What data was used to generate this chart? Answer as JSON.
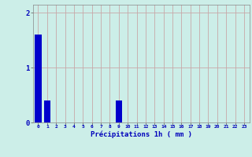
{
  "hours": [
    0,
    1,
    2,
    3,
    4,
    5,
    6,
    7,
    8,
    9,
    10,
    11,
    12,
    13,
    14,
    15,
    16,
    17,
    18,
    19,
    20,
    21,
    22,
    23
  ],
  "values": [
    1.6,
    0.4,
    0,
    0,
    0,
    0,
    0,
    0,
    0,
    0.4,
    0,
    0,
    0,
    0,
    0,
    0,
    0,
    0,
    0,
    0,
    0,
    0,
    0,
    0
  ],
  "bar_color": "#0000cc",
  "background_color": "#cceee8",
  "grid_color": "#c8a8a8",
  "xlabel": "Précipitations 1h ( mm )",
  "xlabel_color": "#0000bb",
  "tick_color": "#0000bb",
  "ylim": [
    0,
    2.15
  ],
  "yticks": [
    0,
    1,
    2
  ],
  "bar_width": 0.75
}
